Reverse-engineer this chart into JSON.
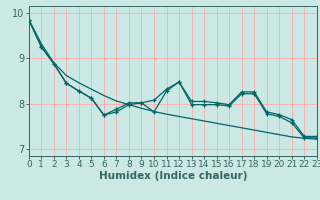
{
  "xlabel": "Humidex (Indice chaleur)",
  "x": [
    0,
    1,
    2,
    3,
    4,
    5,
    6,
    7,
    8,
    9,
    10,
    11,
    12,
    13,
    14,
    15,
    16,
    17,
    18,
    19,
    20,
    21,
    22,
    23
  ],
  "line1": [
    9.85,
    9.25,
    8.88,
    8.45,
    8.28,
    8.12,
    7.75,
    7.88,
    8.02,
    8.02,
    8.08,
    8.32,
    8.48,
    8.05,
    8.05,
    8.02,
    7.98,
    8.26,
    8.26,
    7.82,
    7.76,
    7.65,
    7.28,
    7.28
  ],
  "line2": [
    9.85,
    9.25,
    8.88,
    8.45,
    8.28,
    8.12,
    7.75,
    7.82,
    7.98,
    8.02,
    7.82,
    8.28,
    8.48,
    7.98,
    7.98,
    7.98,
    7.95,
    8.22,
    8.22,
    7.78,
    7.72,
    7.58,
    7.25,
    7.25
  ],
  "smooth_line": [
    9.85,
    9.32,
    8.9,
    8.62,
    8.46,
    8.32,
    8.18,
    8.06,
    7.98,
    7.9,
    7.83,
    7.77,
    7.72,
    7.67,
    7.62,
    7.57,
    7.52,
    7.47,
    7.42,
    7.37,
    7.32,
    7.27,
    7.24,
    7.22
  ],
  "bg_color": "#cce8e4",
  "grid_color": "#ffaaaa",
  "line_color": "#006666",
  "axis_color": "#336666",
  "xlim": [
    0,
    23
  ],
  "ylim": [
    6.85,
    10.15
  ],
  "yticks": [
    7,
    8,
    9,
    10
  ],
  "xticks": [
    0,
    1,
    2,
    3,
    4,
    5,
    6,
    7,
    8,
    9,
    10,
    11,
    12,
    13,
    14,
    15,
    16,
    17,
    18,
    19,
    20,
    21,
    22,
    23
  ],
  "xlabel_fontsize": 7.5,
  "tick_fontsize": 6.5
}
